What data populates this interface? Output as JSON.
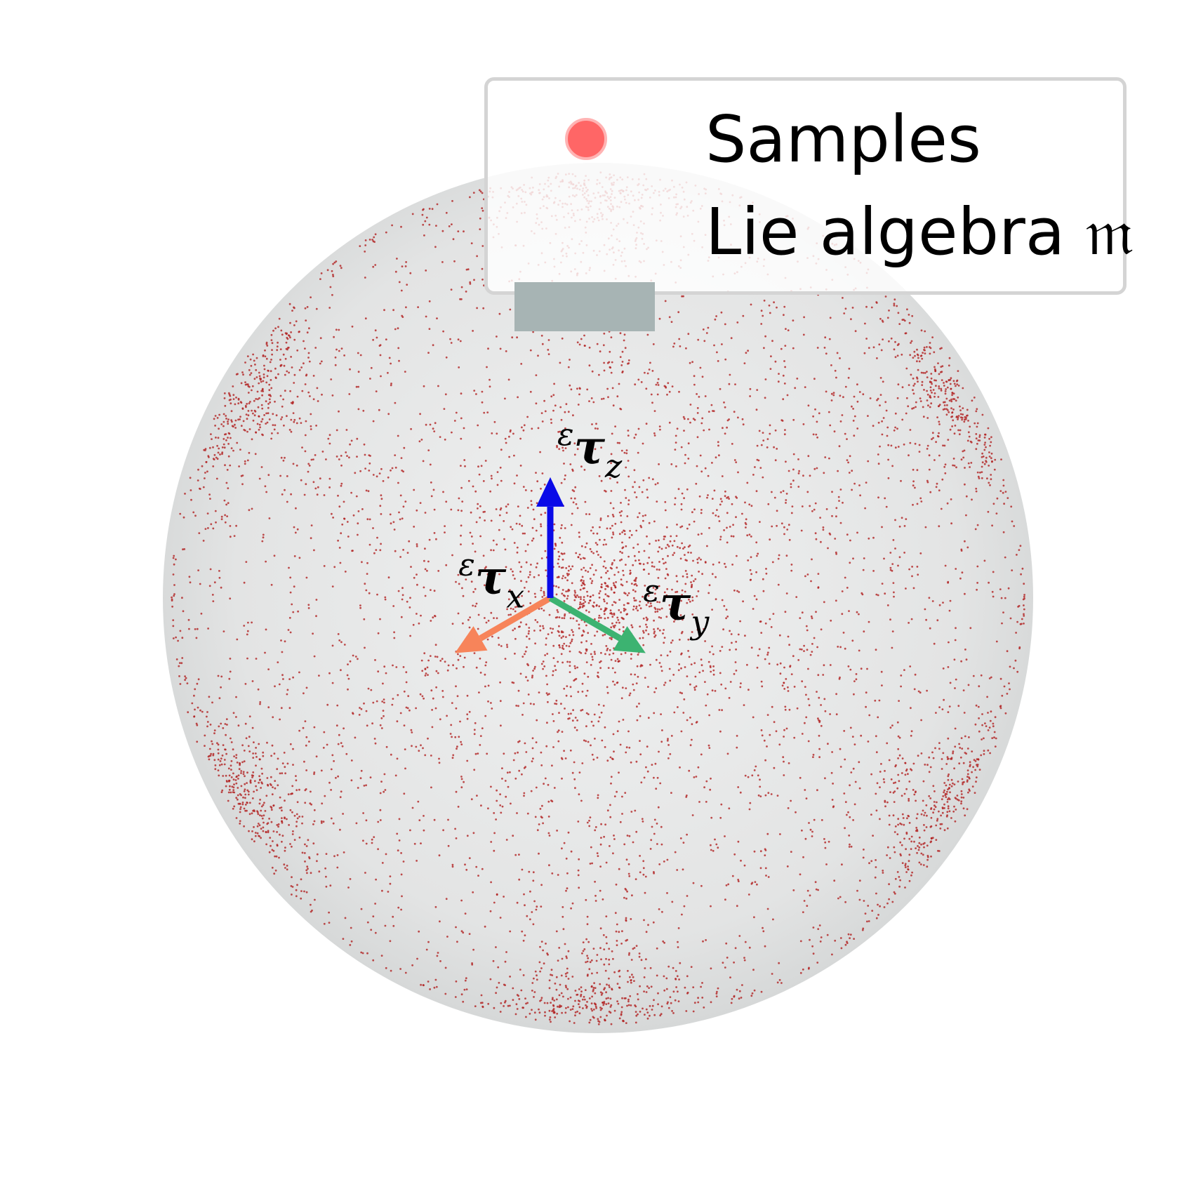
{
  "chart_data": {
    "type": "scatter",
    "title": "",
    "description_mode": "3d-sphere-scatter",
    "projection_view": "isometric",
    "sphere": {
      "center": [
        0,
        0,
        0
      ],
      "radius": 1.0,
      "fill_color": "#d9d9d9"
    },
    "axes": [
      {
        "name": "ε τ_x",
        "direction": [
          1,
          0,
          0
        ],
        "color": "#f7845a"
      },
      {
        "name": "ε τ_y",
        "direction": [
          0,
          1,
          0
        ],
        "color": "#3cb371"
      },
      {
        "name": "ε τ_z",
        "direction": [
          0,
          0,
          1
        ],
        "color": "#0a0ae8"
      }
    ],
    "axis_labels": {
      "x": {
        "sup": "ε",
        "main": "τ",
        "sub": "x"
      },
      "y": {
        "sup": "ε",
        "main": "τ",
        "sub": "y"
      },
      "z": {
        "sup": "ε",
        "main": "τ",
        "sub": "z"
      }
    },
    "series": [
      {
        "name": "Samples",
        "color": "#b22222",
        "legend_color": "#ff6666",
        "clusters_xyz": [
          [
            0.8,
            0.8,
            0.8
          ],
          [
            0.8,
            0.8,
            -0.8
          ],
          [
            0.8,
            -0.8,
            0.8
          ],
          [
            0.8,
            -0.8,
            -0.8
          ],
          [
            -0.8,
            0.8,
            0.8
          ],
          [
            -0.8,
            0.8,
            -0.8
          ],
          [
            -0.8,
            -0.8,
            0.8
          ],
          [
            -0.8,
            -0.8,
            -0.8
          ]
        ]
      },
      {
        "name": "Lie algebra 𝔪",
        "color": "#a7b4b4"
      }
    ],
    "legend": {
      "position": "top-right",
      "entries": [
        {
          "label": "Samples",
          "marker": "circle",
          "color": "#ff6666"
        },
        {
          "label": "Lie algebra 𝔪",
          "marker": "rect",
          "color": "#a7b4b4"
        }
      ]
    },
    "grid": false
  }
}
